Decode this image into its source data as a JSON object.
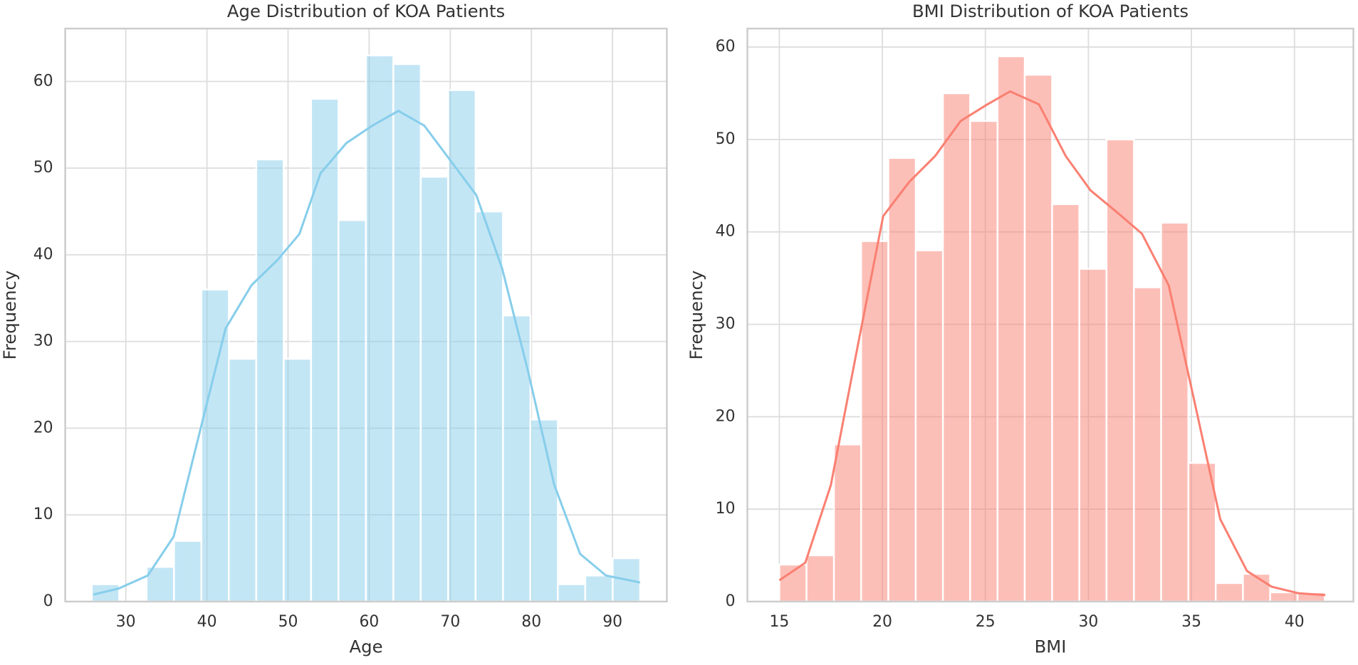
{
  "chart_data": [
    {
      "type": "histogram",
      "title": "Age Distribution of KOA Patients",
      "x_label": "Age",
      "y_label": "Frequency",
      "bins": [
        25.8,
        29.18,
        32.56,
        35.94,
        39.32,
        42.7,
        46.08,
        49.46,
        52.84,
        56.22,
        59.6,
        62.98,
        66.36,
        69.74,
        73.12,
        76.5,
        79.88,
        83.26,
        86.64,
        90.02,
        93.4
      ],
      "values": [
        2,
        0,
        4,
        7,
        36,
        28,
        51,
        28,
        58,
        44,
        63,
        62,
        49,
        59,
        45,
        33,
        21,
        2,
        3,
        5
      ],
      "color": "#87ceeb",
      "kde_x": [
        26,
        29.1,
        32.7,
        35.9,
        39.1,
        42.3,
        45.5,
        48.7,
        51.4,
        54,
        57.2,
        60.4,
        63.6,
        66.8,
        70,
        73.2,
        76.4,
        79.6,
        82.8,
        86,
        89.2,
        93.4
      ],
      "kde_values": [
        0.8,
        1.5,
        3,
        7.5,
        19.5,
        31.5,
        36.5,
        39.4,
        42.4,
        49.4,
        52.9,
        54.9,
        56.6,
        54.9,
        50.9,
        46.9,
        38.4,
        26.5,
        13.5,
        5.5,
        3,
        2.2
      ],
      "xlim": [
        22.53,
        96.7
      ],
      "ylim": [
        0,
        66.1
      ],
      "xticks": [
        30,
        40,
        50,
        60,
        70,
        80,
        90
      ],
      "yticks": [
        0,
        10,
        20,
        30,
        40,
        50,
        60
      ],
      "grid": true
    },
    {
      "type": "histogram",
      "title": "BMI Distribution of KOA Patients",
      "x_label": "BMI",
      "y_label": "Frequency",
      "bins": [
        15,
        16.32,
        17.65,
        18.97,
        20.29,
        21.62,
        22.94,
        24.26,
        25.59,
        26.91,
        28.24,
        29.56,
        30.88,
        32.21,
        33.53,
        34.85,
        36.18,
        37.5,
        38.82,
        40.15,
        41.47
      ],
      "values": [
        4,
        5,
        17,
        39,
        48,
        38,
        55,
        52,
        59,
        57,
        43,
        36,
        50,
        34,
        41,
        15,
        2,
        3,
        1,
        1
      ],
      "color": "#fa8072",
      "kde_x": [
        15,
        16.26,
        17.5,
        18.8,
        20.04,
        21.3,
        22.56,
        23.8,
        25.1,
        26.2,
        27.6,
        28.9,
        30.1,
        31.4,
        32.6,
        33.9,
        35.2,
        36.4,
        37.7,
        38.9,
        40.2,
        41.5
      ],
      "kde_values": [
        2.3,
        4.2,
        12.6,
        27.6,
        41.7,
        45.4,
        48.2,
        52,
        53.8,
        55.2,
        53.8,
        48.2,
        44.5,
        42.1,
        39.8,
        34.2,
        21.1,
        8.9,
        3.3,
        1.6,
        0.9,
        0.7
      ],
      "xlim": [
        13.45,
        42.86
      ],
      "ylim": [
        0,
        62
      ],
      "xticks": [
        15,
        20,
        25,
        30,
        35,
        40
      ],
      "yticks": [
        0,
        10,
        20,
        30,
        40,
        50,
        60
      ],
      "grid": true
    }
  ]
}
